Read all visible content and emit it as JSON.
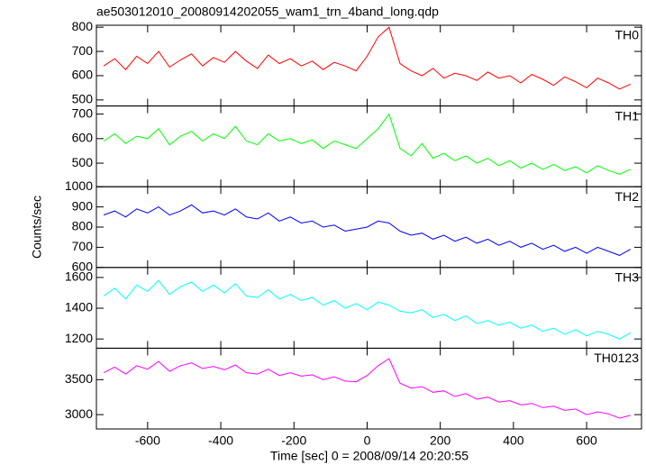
{
  "chart_data": {
    "type": "line",
    "title": "ae503012010_20080914202055_wam1_trn_4band_long.qdp",
    "x_label": "Time [sec] 0 = 2008/09/14 20:20:55",
    "y_label": "Counts/sec",
    "xlim": [
      -740,
      750
    ],
    "xticks": [
      -600,
      -400,
      -200,
      0,
      200,
      400,
      600
    ],
    "x": [
      -720,
      -690,
      -660,
      -630,
      -600,
      -570,
      -540,
      -510,
      -480,
      -450,
      -420,
      -390,
      -360,
      -330,
      -300,
      -270,
      -240,
      -210,
      -180,
      -150,
      -120,
      -90,
      -60,
      -30,
      0,
      30,
      60,
      90,
      120,
      150,
      180,
      210,
      240,
      270,
      300,
      330,
      360,
      390,
      420,
      450,
      480,
      510,
      540,
      570,
      600,
      630,
      660,
      690,
      720
    ],
    "series": [
      {
        "name": "TH0",
        "color": "#ff0000",
        "ylim": [
          475,
          808
        ],
        "yticks": [
          500,
          600,
          700,
          800
        ],
        "values": [
          640,
          670,
          625,
          680,
          650,
          700,
          635,
          665,
          690,
          640,
          675,
          655,
          700,
          660,
          630,
          685,
          650,
          670,
          640,
          660,
          625,
          655,
          640,
          620,
          680,
          760,
          800,
          650,
          620,
          600,
          630,
          590,
          610,
          600,
          580,
          615,
          590,
          600,
          570,
          605,
          585,
          560,
          595,
          575,
          550,
          590,
          570,
          545,
          565
        ]
      },
      {
        "name": "TH1",
        "color": "#00ff00",
        "ylim": [
          404,
          733
        ],
        "yticks": [
          500,
          600,
          700
        ],
        "values": [
          590,
          620,
          580,
          610,
          600,
          640,
          575,
          610,
          630,
          590,
          620,
          600,
          650,
          590,
          575,
          620,
          590,
          600,
          580,
          595,
          560,
          590,
          575,
          560,
          600,
          640,
          700,
          560,
          530,
          580,
          520,
          540,
          510,
          530,
          500,
          520,
          490,
          510,
          480,
          500,
          475,
          495,
          470,
          485,
          460,
          490,
          470,
          455,
          475
        ]
      },
      {
        "name": "TH2",
        "color": "#0000ff",
        "ylim": [
          600,
          1000
        ],
        "yticks": [
          600,
          700,
          800,
          900,
          1000
        ],
        "values": [
          860,
          880,
          850,
          890,
          870,
          900,
          860,
          880,
          910,
          870,
          880,
          860,
          890,
          850,
          840,
          870,
          830,
          850,
          820,
          830,
          800,
          810,
          780,
          790,
          800,
          830,
          820,
          780,
          760,
          770,
          740,
          760,
          730,
          750,
          720,
          740,
          710,
          730,
          700,
          720,
          690,
          710,
          680,
          700,
          670,
          700,
          680,
          660,
          690
        ]
      },
      {
        "name": "TH3",
        "color": "#00ffff",
        "ylim": [
          1140,
          1665
        ],
        "yticks": [
          1200,
          1400,
          1600
        ],
        "values": [
          1480,
          1530,
          1460,
          1550,
          1510,
          1580,
          1490,
          1540,
          1570,
          1510,
          1550,
          1500,
          1560,
          1480,
          1470,
          1520,
          1460,
          1490,
          1450,
          1470,
          1420,
          1450,
          1400,
          1430,
          1390,
          1440,
          1420,
          1380,
          1370,
          1390,
          1340,
          1360,
          1320,
          1350,
          1300,
          1320,
          1290,
          1310,
          1270,
          1290,
          1250,
          1270,
          1230,
          1260,
          1220,
          1250,
          1230,
          1200,
          1240
        ]
      },
      {
        "name": "TH0123",
        "color": "#ff00ff",
        "ylim": [
          2795,
          3950
        ],
        "yticks": [
          3000,
          3500
        ],
        "values": [
          3600,
          3680,
          3580,
          3700,
          3650,
          3760,
          3620,
          3700,
          3740,
          3660,
          3690,
          3640,
          3710,
          3600,
          3580,
          3650,
          3560,
          3600,
          3550,
          3570,
          3500,
          3540,
          3480,
          3470,
          3560,
          3700,
          3800,
          3450,
          3380,
          3400,
          3320,
          3340,
          3260,
          3300,
          3220,
          3250,
          3180,
          3200,
          3140,
          3160,
          3100,
          3120,
          3060,
          3080,
          3000,
          3040,
          3010,
          2950,
          2990
        ]
      }
    ]
  }
}
